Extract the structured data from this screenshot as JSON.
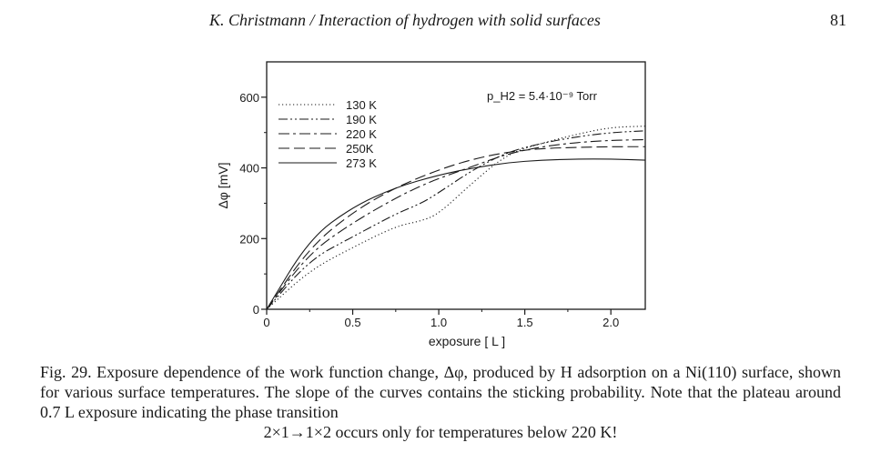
{
  "header": {
    "running_title": "K. Christmann / Interaction of hydrogen with solid surfaces",
    "page_number": "81"
  },
  "chart_data": {
    "type": "line",
    "xlabel": "exposure [ L ]",
    "ylabel": "Δφ [mV]",
    "xlim": [
      0,
      2.2
    ],
    "ylim": [
      0,
      700
    ],
    "xticks": [
      "0",
      "0.5",
      "1.0",
      "1.5",
      "2.0"
    ],
    "yticks": [
      "0",
      "200",
      "400",
      "600"
    ],
    "annotation": "p_H2 = 5.4·10⁻⁹ Torr",
    "legend_position": "top-left",
    "series": [
      {
        "name": "130 K",
        "style": "dotted",
        "x": [
          0,
          0.25,
          0.5,
          0.75,
          0.9,
          1.0,
          1.2,
          1.4,
          1.6,
          1.8,
          2.0,
          2.2
        ],
        "y": [
          0,
          110,
          175,
          235,
          250,
          270,
          360,
          440,
          470,
          495,
          515,
          518
        ]
      },
      {
        "name": "190 K",
        "style": "dash-dot-dot",
        "x": [
          0,
          0.25,
          0.5,
          0.75,
          0.9,
          1.0,
          1.2,
          1.4,
          1.6,
          1.8,
          2.0,
          2.2
        ],
        "y": [
          0,
          140,
          205,
          270,
          300,
          330,
          395,
          445,
          470,
          488,
          500,
          505
        ]
      },
      {
        "name": "220 K",
        "style": "dash-dot",
        "x": [
          0,
          0.25,
          0.5,
          0.75,
          0.9,
          1.0,
          1.2,
          1.4,
          1.6,
          1.8,
          2.0,
          2.2
        ],
        "y": [
          0,
          160,
          245,
          315,
          350,
          370,
          405,
          440,
          460,
          472,
          478,
          480
        ]
      },
      {
        "name": "250K",
        "style": "dashed",
        "x": [
          0,
          0.25,
          0.5,
          0.75,
          1.0,
          1.2,
          1.4,
          1.6,
          1.8,
          2.0,
          2.2
        ],
        "y": [
          0,
          175,
          275,
          345,
          395,
          425,
          445,
          455,
          458,
          460,
          460
        ]
      },
      {
        "name": "273 K",
        "style": "solid",
        "x": [
          0,
          0.25,
          0.5,
          0.75,
          1.0,
          1.2,
          1.4,
          1.6,
          1.8,
          2.0,
          2.2
        ],
        "y": [
          0,
          200,
          290,
          345,
          380,
          400,
          415,
          422,
          425,
          425,
          422
        ]
      }
    ]
  },
  "caption": {
    "main": "Fig. 29. Exposure dependence of the work function change, Δφ, produced by H adsorption on a Ni(110) surface, shown for various surface temperatures. The slope of the curves contains the sticking probability. Note that the plateau around 0.7 L exposure indicating the phase transition",
    "last_line": "2×1→1×2 occurs only for temperatures below 220 K!"
  }
}
